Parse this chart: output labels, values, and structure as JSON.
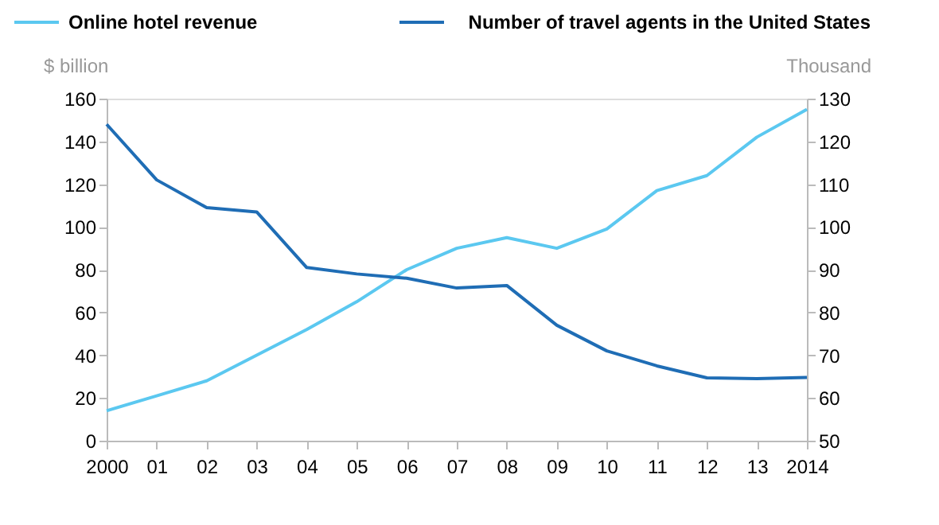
{
  "chart_data": {
    "type": "line",
    "categories": [
      "2000",
      "01",
      "02",
      "03",
      "04",
      "05",
      "06",
      "07",
      "08",
      "09",
      "10",
      "11",
      "12",
      "13",
      "2014"
    ],
    "ylabel": "$ billion",
    "y2label": "Thousand",
    "series": [
      {
        "name": "Online hotel revenue",
        "color": "#5bc8f0",
        "values": [
          14,
          21,
          28,
          40,
          52,
          65,
          80,
          90,
          95,
          90,
          99,
          117,
          124,
          142,
          155
        ]
      },
      {
        "name": "Number of travel agents in the United States",
        "color": "#1f6db5",
        "axis": "y2",
        "values": [
          124,
          111,
          104.5,
          103.5,
          90.5,
          89,
          88,
          85.7,
          86.3,
          77,
          71,
          67.5,
          64.7,
          64.5,
          64.8
        ]
      }
    ],
    "ylim": [
      0,
      160
    ],
    "yticks": [
      0,
      20,
      40,
      60,
      80,
      100,
      120,
      140,
      160
    ],
    "y2lim": [
      50,
      130
    ],
    "y2ticks": [
      50,
      60,
      70,
      80,
      90,
      100,
      110,
      120,
      130
    ],
    "grid": false,
    "legend": "top",
    "marker": "none",
    "line_style": "solid"
  }
}
